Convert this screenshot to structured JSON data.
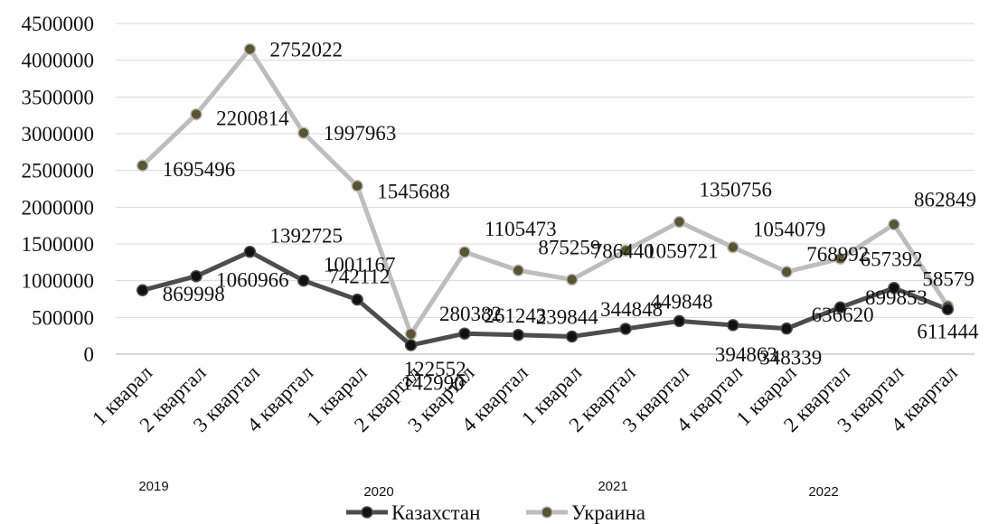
{
  "chart_data": {
    "type": "line",
    "categories": [
      "1 кварал",
      "2 квартал",
      "3 квартал",
      "4 квартал",
      "1 кварал",
      "2 квартал",
      "3 квартал",
      "4 квартал",
      "1 кварал",
      "2 квартал",
      "3 квартал",
      "4 квартал",
      "1 кварал",
      "2 квартал",
      "3 квартал",
      "4 квартал"
    ],
    "groups": [
      "2019",
      "2020",
      "2021",
      "2022"
    ],
    "ylim": [
      0,
      4500000
    ],
    "yticks": [
      "0",
      "500000",
      "1000000",
      "1500000",
      "2000000",
      "2500000",
      "3000000",
      "3500000",
      "4000000",
      "4500000"
    ],
    "grid": true,
    "legend_position": "bottom",
    "series": [
      {
        "name": "Казахстан",
        "color": "#4d4d4d",
        "marker": "#111111",
        "values": [
          869998,
          1060966,
          1392725,
          1001167,
          742112,
          122552,
          280382,
          261243,
          239844,
          344848,
          449848,
          394863,
          348339,
          636620,
          899853,
          611444
        ]
      },
      {
        "name": "Украина",
        "color": "#bdbdbd",
        "marker": "#5a5530",
        "values": [
          2567000,
          3265000,
          4150000,
          3010000,
          2290000,
          275000,
          1390000,
          1140000,
          1015000,
          1410000,
          1800000,
          1455000,
          1120000,
          1300000,
          1765000,
          655000
        ],
        "labels": [
          "1695496",
          "2200814",
          "2752022",
          "1997963",
          "1545688",
          "142990",
          "1105473",
          "875259",
          "786440",
          "1059721",
          "1350756",
          "1054079",
          "768992",
          "657392",
          "862849",
          "58579"
        ]
      }
    ]
  }
}
